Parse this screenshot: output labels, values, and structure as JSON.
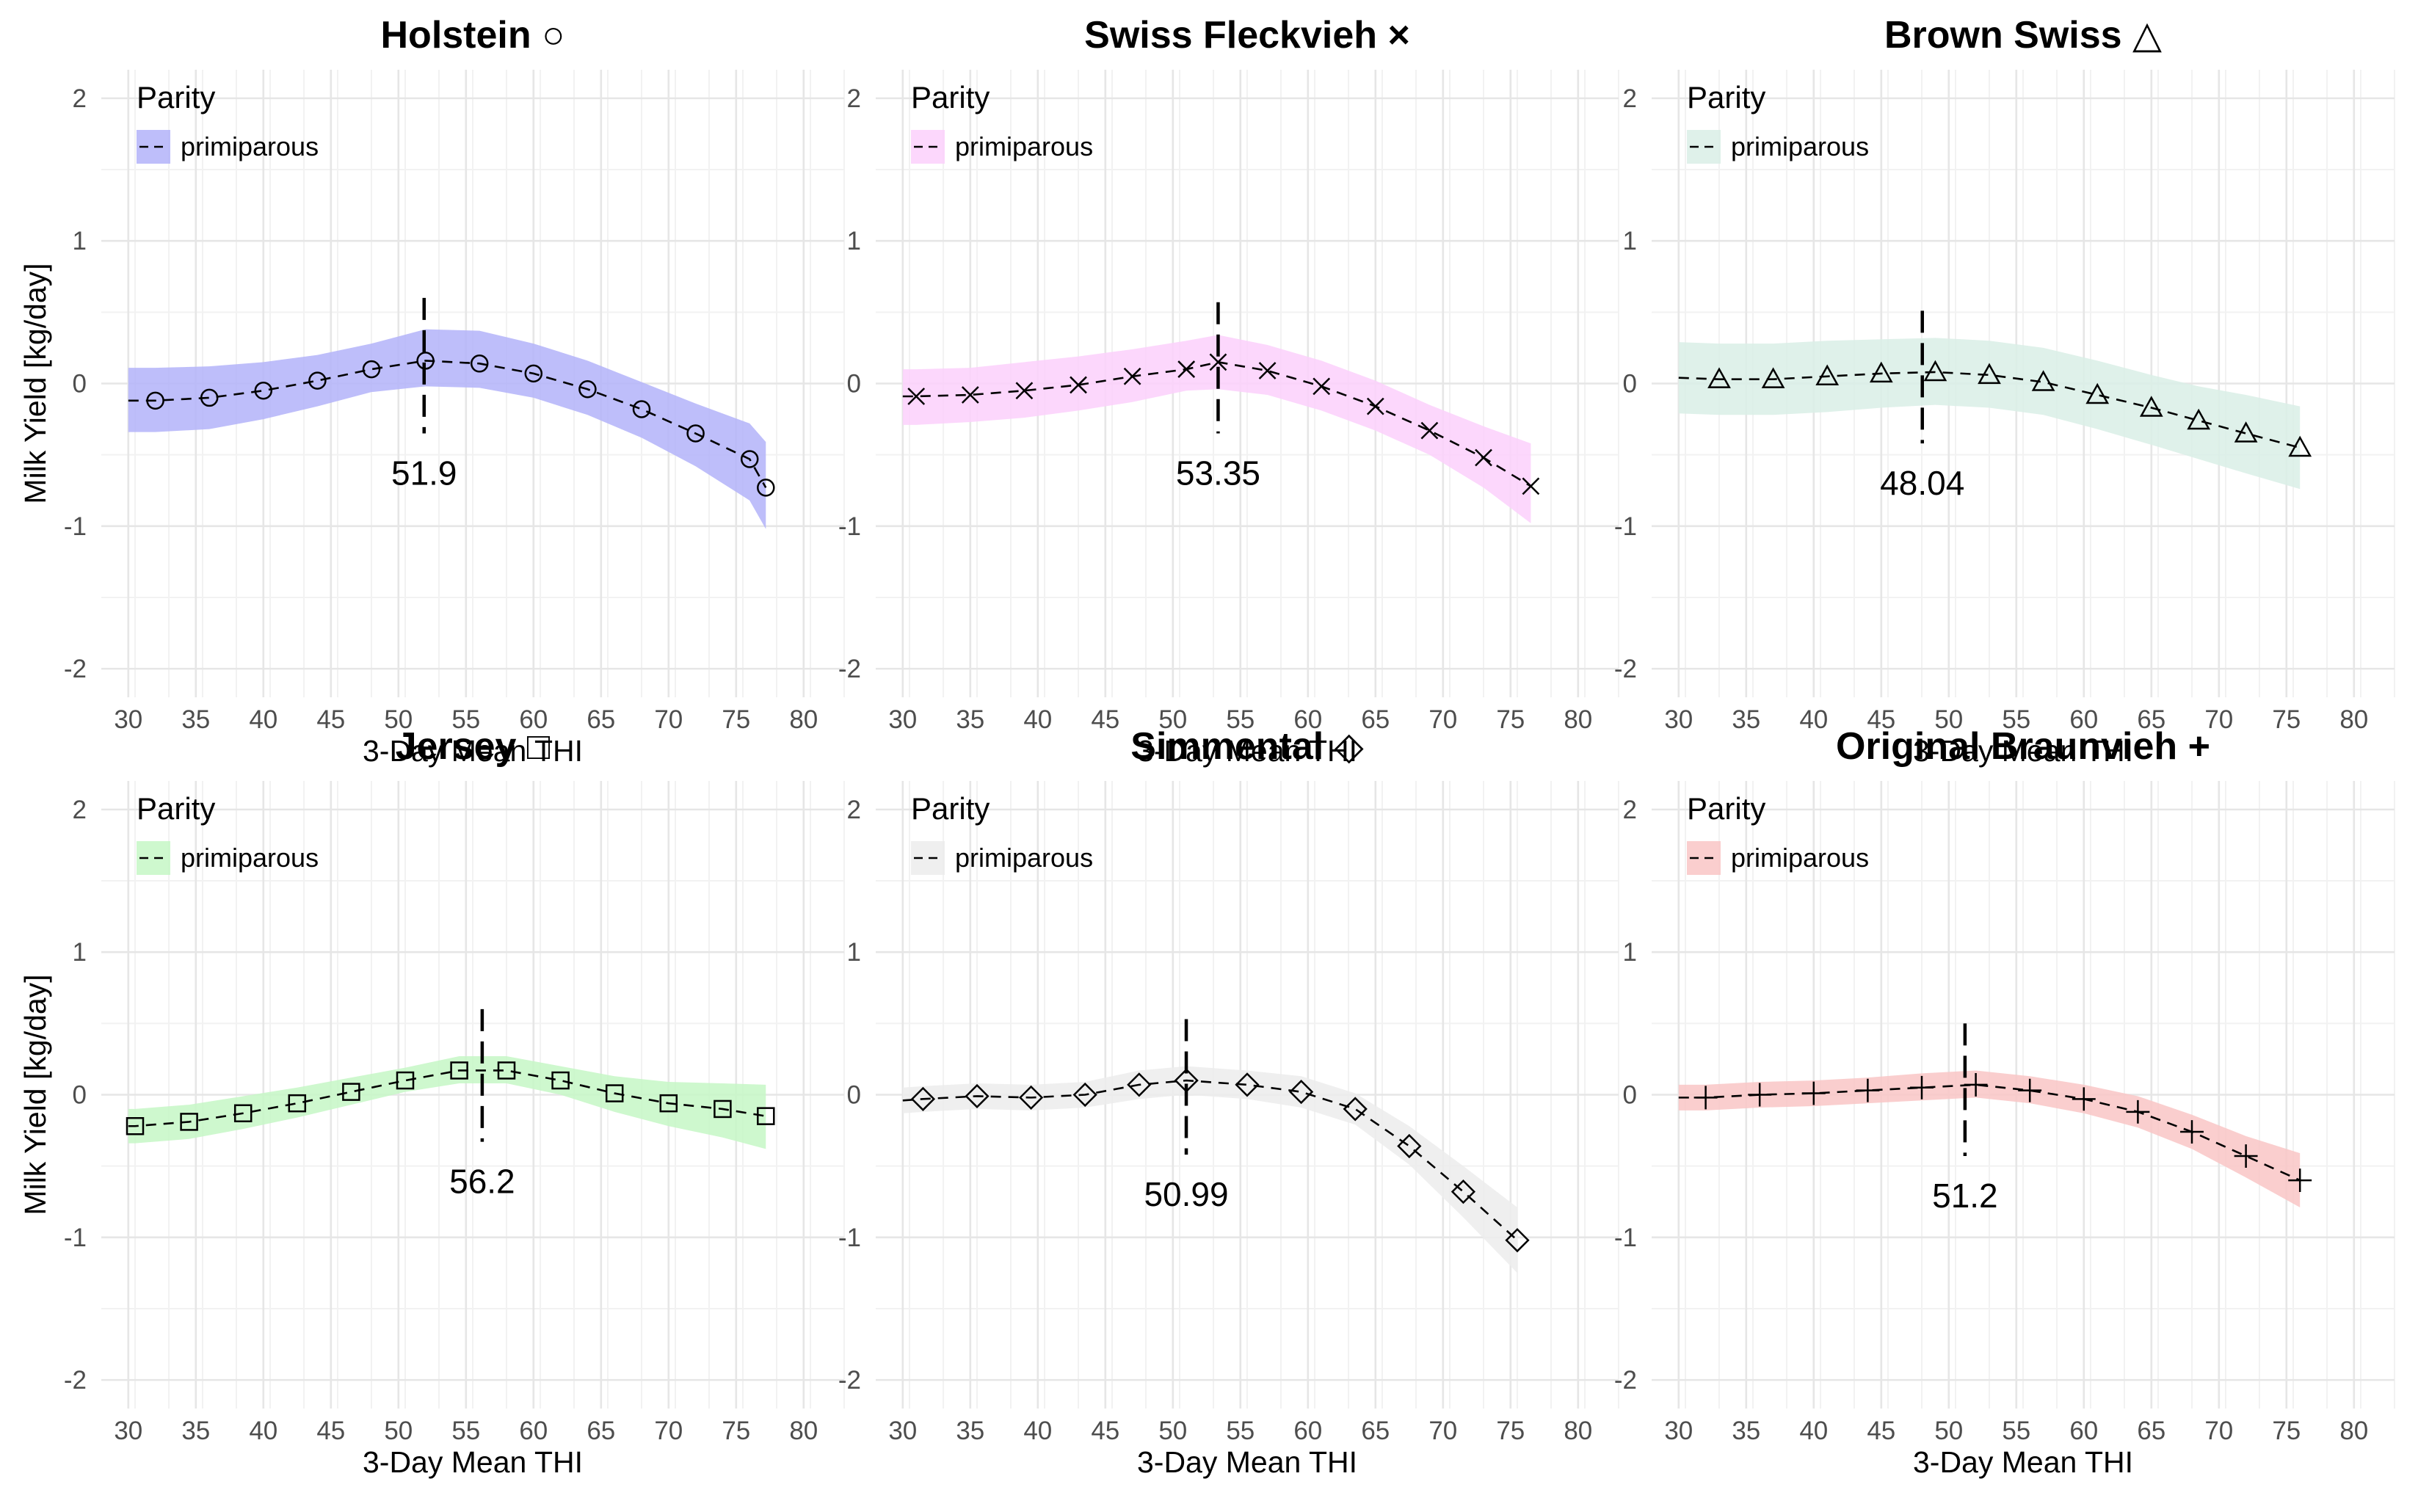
{
  "chart_data": [
    {
      "type": "line",
      "title": "Holstein",
      "marker": "circle",
      "band_color": "#b3b3f9",
      "xlabel": "3-Day Mean THI",
      "ylabel": "Milk Yield [kg/day]",
      "xlim": [
        28,
        83
      ],
      "ylim": [
        -2.2,
        2.2
      ],
      "xticks": [
        30,
        35,
        40,
        45,
        50,
        55,
        60,
        65,
        70,
        75,
        80
      ],
      "yticks": [
        -2,
        -1,
        0,
        1,
        2
      ],
      "legend": {
        "title": "Parity",
        "label": "primiparous"
      },
      "series": [
        {
          "name": "primiparous",
          "x": [
            30,
            32,
            36,
            40,
            44,
            48,
            52,
            56,
            60,
            64,
            68,
            72,
            76,
            77.2
          ],
          "y": [
            -0.12,
            -0.12,
            -0.1,
            -0.05,
            0.02,
            0.1,
            0.16,
            0.14,
            0.07,
            -0.04,
            -0.18,
            -0.35,
            -0.53,
            -0.73
          ],
          "lower": [
            -0.34,
            -0.34,
            -0.32,
            -0.25,
            -0.16,
            -0.06,
            -0.02,
            -0.03,
            -0.1,
            -0.22,
            -0.38,
            -0.58,
            -0.82,
            -1.02
          ],
          "upper": [
            0.11,
            0.11,
            0.12,
            0.15,
            0.2,
            0.28,
            0.38,
            0.37,
            0.28,
            0.16,
            0.01,
            -0.14,
            -0.28,
            -0.41
          ],
          "markers_x": [
            32,
            36,
            40,
            44,
            48,
            52,
            56,
            60,
            64,
            68,
            72,
            76,
            77.2
          ]
        }
      ],
      "vline": {
        "x": 51.9,
        "y0": -0.35,
        "y1": 0.6,
        "label": "51.9"
      }
    },
    {
      "type": "line",
      "title": "Swiss Fleckvieh",
      "marker": "x",
      "band_color": "#fbd0fb",
      "xlabel": "3-Day Mean THI",
      "ylabel": "",
      "xlim": [
        28,
        83
      ],
      "ylim": [
        -2.2,
        2.2
      ],
      "xticks": [
        30,
        35,
        40,
        45,
        50,
        55,
        60,
        65,
        70,
        75,
        80
      ],
      "yticks": [
        -2,
        -1,
        0,
        1,
        2
      ],
      "legend": {
        "title": "Parity",
        "label": "primiparous"
      },
      "series": [
        {
          "name": "primiparous",
          "x": [
            30,
            31,
            35,
            39,
            43,
            47,
            51,
            53.35,
            57,
            61,
            65,
            69,
            73,
            76.5
          ],
          "y": [
            -0.09,
            -0.09,
            -0.08,
            -0.05,
            -0.01,
            0.05,
            0.1,
            0.15,
            0.09,
            -0.02,
            -0.16,
            -0.33,
            -0.52,
            -0.72
          ],
          "lower": [
            -0.29,
            -0.29,
            -0.27,
            -0.24,
            -0.19,
            -0.13,
            -0.05,
            -0.04,
            -0.08,
            -0.19,
            -0.33,
            -0.5,
            -0.73,
            -0.98
          ],
          "upper": [
            0.1,
            0.1,
            0.11,
            0.15,
            0.19,
            0.24,
            0.3,
            0.34,
            0.27,
            0.16,
            0.02,
            -0.15,
            -0.3,
            -0.42
          ],
          "markers_x": [
            31,
            35,
            39,
            43,
            47,
            51,
            53.35,
            57,
            61,
            65,
            69,
            73,
            76.5
          ]
        }
      ],
      "vline": {
        "x": 53.35,
        "y0": -0.35,
        "y1": 0.57,
        "label": "53.35"
      }
    },
    {
      "type": "line",
      "title": "Brown Swiss",
      "marker": "triangle",
      "band_color": "#d9efe6",
      "xlabel": "3-Day Mean THI",
      "ylabel": "",
      "xlim": [
        28,
        83
      ],
      "ylim": [
        -2.2,
        2.2
      ],
      "xticks": [
        30,
        35,
        40,
        45,
        50,
        55,
        60,
        65,
        70,
        75,
        80
      ],
      "yticks": [
        -2,
        -1,
        0,
        1,
        2
      ],
      "legend": {
        "title": "Parity",
        "label": "primiparous"
      },
      "series": [
        {
          "name": "primiparous",
          "x": [
            30,
            33,
            37,
            41,
            45,
            49,
            53,
            57,
            61,
            65,
            68.5,
            72,
            76
          ],
          "y": [
            0.04,
            0.03,
            0.03,
            0.05,
            0.07,
            0.08,
            0.06,
            0.01,
            -0.08,
            -0.17,
            -0.26,
            -0.35,
            -0.45
          ],
          "lower": [
            -0.21,
            -0.22,
            -0.22,
            -0.2,
            -0.17,
            -0.15,
            -0.17,
            -0.22,
            -0.32,
            -0.43,
            -0.53,
            -0.63,
            -0.74
          ],
          "upper": [
            0.29,
            0.28,
            0.28,
            0.3,
            0.31,
            0.32,
            0.3,
            0.25,
            0.16,
            0.06,
            -0.02,
            -0.08,
            -0.16
          ],
          "markers_x": [
            33,
            37,
            41,
            45,
            49,
            53,
            57,
            61,
            65,
            68.5,
            72,
            76
          ]
        }
      ],
      "vline": {
        "x": 48.04,
        "y0": -0.42,
        "y1": 0.51,
        "label": "48.04"
      }
    },
    {
      "type": "line",
      "title": "Jersey",
      "marker": "square",
      "band_color": "#c6f7c6",
      "xlabel": "3-Day Mean THI",
      "ylabel": "Milk Yield [kg/day]",
      "xlim": [
        28,
        83
      ],
      "ylim": [
        -2.2,
        2.2
      ],
      "xticks": [
        30,
        35,
        40,
        45,
        50,
        55,
        60,
        65,
        70,
        75,
        80
      ],
      "yticks": [
        -2,
        -1,
        0,
        1,
        2
      ],
      "legend": {
        "title": "Parity",
        "label": "primiparous"
      },
      "series": [
        {
          "name": "primiparous",
          "x": [
            30,
            30.5,
            34.5,
            38.5,
            42.5,
            46.5,
            50.5,
            54.5,
            58,
            62,
            66,
            70,
            74,
            77.2
          ],
          "y": [
            -0.22,
            -0.22,
            -0.19,
            -0.13,
            -0.06,
            0.02,
            0.1,
            0.17,
            0.17,
            0.1,
            0.01,
            -0.06,
            -0.1,
            -0.15
          ],
          "lower": [
            -0.34,
            -0.34,
            -0.31,
            -0.24,
            -0.16,
            -0.07,
            0.02,
            0.08,
            0.08,
            0.0,
            -0.12,
            -0.22,
            -0.3,
            -0.38
          ],
          "upper": [
            -0.1,
            -0.1,
            -0.07,
            -0.01,
            0.05,
            0.12,
            0.19,
            0.27,
            0.27,
            0.2,
            0.13,
            0.09,
            0.08,
            0.07
          ],
          "markers_x": [
            30.5,
            34.5,
            38.5,
            42.5,
            46.5,
            50.5,
            54.5,
            58,
            62,
            66,
            70,
            74,
            77.2
          ]
        }
      ],
      "vline": {
        "x": 56.2,
        "y0": -0.33,
        "y1": 0.6,
        "label": "56.2"
      }
    },
    {
      "type": "line",
      "title": "Simmental",
      "marker": "diamond",
      "band_color": "#ececec",
      "xlabel": "3-Day Mean THI",
      "ylabel": "",
      "xlim": [
        28,
        83
      ],
      "ylim": [
        -2.2,
        2.2
      ],
      "xticks": [
        30,
        35,
        40,
        45,
        50,
        55,
        60,
        65,
        70,
        75,
        80
      ],
      "yticks": [
        -2,
        -1,
        0,
        1,
        2
      ],
      "legend": {
        "title": "Parity",
        "label": "primiparous"
      },
      "series": [
        {
          "name": "primiparous",
          "x": [
            30,
            31.5,
            35.5,
            39.5,
            43.5,
            47.5,
            51,
            55.5,
            59.5,
            63.5,
            67.5,
            71.5,
            75.5
          ],
          "y": [
            -0.04,
            -0.03,
            -0.01,
            -0.02,
            0.0,
            0.07,
            0.1,
            0.07,
            0.02,
            -0.1,
            -0.36,
            -0.68,
            -1.02
          ],
          "lower": [
            -0.13,
            -0.12,
            -0.1,
            -0.11,
            -0.09,
            -0.03,
            0.0,
            -0.03,
            -0.09,
            -0.21,
            -0.49,
            -0.86,
            -1.25
          ],
          "upper": [
            0.05,
            0.06,
            0.08,
            0.07,
            0.09,
            0.17,
            0.2,
            0.17,
            0.13,
            0.01,
            -0.22,
            -0.5,
            -0.79
          ],
          "markers_x": [
            31.5,
            35.5,
            39.5,
            43.5,
            47.5,
            51,
            55.5,
            59.5,
            63.5,
            67.5,
            71.5,
            75.5
          ]
        }
      ],
      "vline": {
        "x": 50.99,
        "y0": -0.42,
        "y1": 0.53,
        "label": "50.99"
      }
    },
    {
      "type": "line",
      "title": "Original Braunvieh",
      "marker": "plus",
      "band_color": "#f9c6c6",
      "xlabel": "3-Day Mean THI",
      "ylabel": "",
      "xlim": [
        28,
        83
      ],
      "ylim": [
        -2.2,
        2.2
      ],
      "xticks": [
        30,
        35,
        40,
        45,
        50,
        55,
        60,
        65,
        70,
        75,
        80
      ],
      "yticks": [
        -2,
        -1,
        0,
        1,
        2
      ],
      "legend": {
        "title": "Parity",
        "label": "primiparous"
      },
      "series": [
        {
          "name": "primiparous",
          "x": [
            30,
            32,
            36,
            40,
            44,
            48,
            52,
            56,
            60,
            64,
            68,
            72,
            76
          ],
          "y": [
            -0.02,
            -0.02,
            0.0,
            0.01,
            0.03,
            0.05,
            0.07,
            0.03,
            -0.03,
            -0.12,
            -0.26,
            -0.43,
            -0.6
          ],
          "lower": [
            -0.11,
            -0.11,
            -0.09,
            -0.08,
            -0.06,
            -0.04,
            -0.02,
            -0.06,
            -0.13,
            -0.23,
            -0.38,
            -0.58,
            -0.79
          ],
          "upper": [
            0.07,
            0.07,
            0.09,
            0.1,
            0.12,
            0.15,
            0.17,
            0.13,
            0.07,
            -0.01,
            -0.14,
            -0.29,
            -0.41
          ],
          "markers_x": [
            32,
            36,
            40,
            44,
            48,
            52,
            56,
            60,
            64,
            68,
            72,
            76
          ]
        }
      ],
      "vline": {
        "x": 51.2,
        "y0": -0.43,
        "y1": 0.5,
        "label": "51.2"
      }
    }
  ],
  "title_glyphs": {
    "circle": "○",
    "x": "×",
    "triangle": "△",
    "square": "□",
    "diamond": "◇",
    "plus": "+"
  }
}
